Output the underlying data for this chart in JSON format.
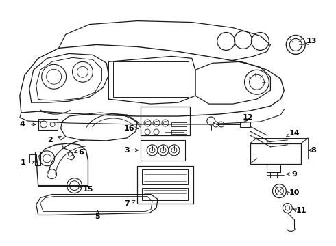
{
  "bg_color": "#ffffff",
  "lc": "#1a1a1a",
  "tc": "#000000",
  "figsize": [
    4.9,
    3.6
  ],
  "dpi": 100,
  "lw": 0.75,
  "label_fs": 8,
  "label_fw": "bold"
}
